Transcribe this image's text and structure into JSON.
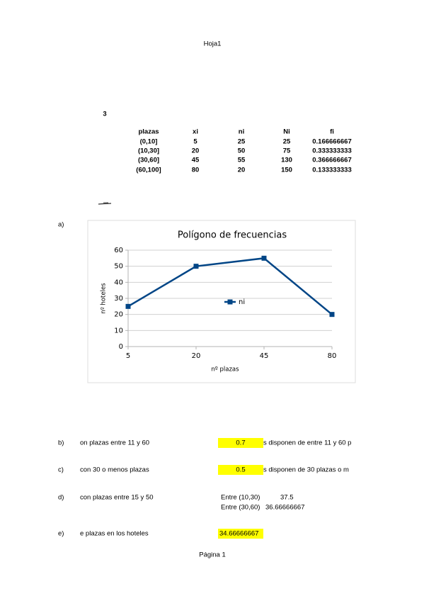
{
  "header": {
    "title": "Hoja1"
  },
  "exercise": "3",
  "table": {
    "columns": [
      "plazas",
      "xi",
      "ni",
      "Ni",
      "fi"
    ],
    "rows": [
      [
        "(0,10]",
        "5",
        "25",
        "25",
        "0.166666667"
      ],
      [
        "(10,30]",
        "20",
        "50",
        "75",
        "0.333333333"
      ],
      [
        "(30,60]",
        "45",
        "55",
        "130",
        "0.366666667"
      ],
      [
        "(60,100]",
        "80",
        "20",
        "150",
        "0.133333333"
      ]
    ]
  },
  "chart_label": "a)",
  "chart_data": {
    "type": "line",
    "title": "Polígono de frecuencias",
    "categories": [
      "5",
      "20",
      "45",
      "80"
    ],
    "series": [
      {
        "name": "ni",
        "color": "#004586",
        "values": [
          25,
          50,
          55,
          20
        ]
      }
    ],
    "ylim": [
      0,
      60
    ],
    "yticks": [
      0,
      10,
      20,
      30,
      40,
      50,
      60
    ],
    "xlabel": "nº plazas",
    "ylabel": "nº hoteles",
    "grid": true,
    "legend": "center"
  },
  "items": [
    {
      "label": "b)",
      "text": "on plazas entre 11 y 60",
      "result": "0.7",
      "tail": "s disponen de entre 11 y 60 p"
    },
    {
      "label": "c)",
      "text": "con 30 o menos plazas",
      "result": "0.5",
      "tail": "s disponen de 30 plazas o m"
    },
    {
      "label": "d)",
      "text": "con plazas entre 15 y 50",
      "lines": [
        [
          "Entre (10,30)",
          "37.5"
        ],
        [
          "Entre (30,60)",
          "36.66666667"
        ]
      ]
    },
    {
      "label": "e)",
      "text": "e plazas en los hoteles",
      "result": "34.66666667"
    }
  ],
  "footer": "Página 1"
}
